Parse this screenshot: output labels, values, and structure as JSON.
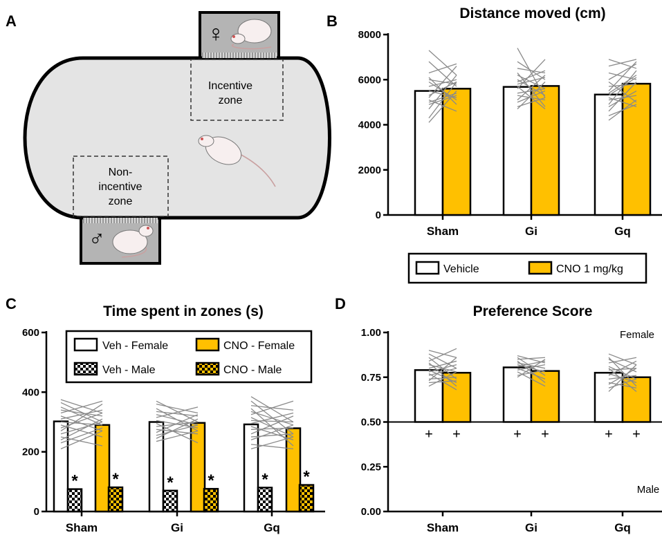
{
  "panels": {
    "A": {
      "label": "A",
      "female_symbol": "♀",
      "male_symbol": "♂",
      "incentive_zone": [
        "Incentive",
        "zone"
      ],
      "noninc_zone": [
        "Non-",
        "incentive",
        "zone"
      ]
    },
    "B": {
      "label": "B"
    },
    "C": {
      "label": "C"
    },
    "D": {
      "label": "D"
    }
  },
  "colors": {
    "vehicle": "#ffffff",
    "cno": "#ffc000",
    "edge": "#000000",
    "individual": "#8a8a8a",
    "arena": "#e4e4e4",
    "box": "#b4b4b4"
  },
  "chart_data": [
    {
      "id": "B",
      "type": "bar",
      "title": "Distance moved (cm)",
      "categories": [
        "Sham",
        "Gi",
        "Gq"
      ],
      "ylim": [
        0,
        8000
      ],
      "yticks": [
        0,
        2000,
        4000,
        6000,
        8000
      ],
      "series": [
        {
          "name": "Vehicle",
          "values": [
            5500,
            5680,
            5340
          ]
        },
        {
          "name": "CNO 1 mg/kg",
          "values": [
            5600,
            5720,
            5820
          ]
        }
      ],
      "legend": {
        "placement": "bottom",
        "entries": [
          "Vehicle",
          "CNO 1 mg/kg"
        ]
      },
      "individual_lines": [
        [
          [
            4300,
            5900
          ],
          [
            4700,
            6200
          ],
          [
            5000,
            5400
          ],
          [
            5200,
            6600
          ],
          [
            5500,
            5200
          ],
          [
            5700,
            6000
          ],
          [
            6000,
            5800
          ],
          [
            6300,
            6700
          ],
          [
            6800,
            5700
          ],
          [
            7300,
            6200
          ],
          [
            5100,
            4600
          ],
          [
            4900,
            5300
          ],
          [
            5900,
            5100
          ],
          [
            5300,
            5900
          ],
          [
            6100,
            4900
          ],
          [
            4100,
            5500
          ]
        ],
        [
          [
            4800,
            5200
          ],
          [
            5100,
            6200
          ],
          [
            5400,
            5600
          ],
          [
            5700,
            4700
          ],
          [
            5900,
            6400
          ],
          [
            6200,
            5600
          ],
          [
            6500,
            6300
          ],
          [
            7400,
            5200
          ],
          [
            6800,
            6000
          ],
          [
            5300,
            5100
          ],
          [
            6000,
            5300
          ],
          [
            5600,
            6900
          ],
          [
            4700,
            5900
          ],
          [
            6300,
            4800
          ],
          [
            5000,
            5500
          ],
          [
            5800,
            6100
          ]
        ],
        [
          [
            4200,
            5100
          ],
          [
            4600,
            5900
          ],
          [
            4900,
            6400
          ],
          [
            5100,
            5300
          ],
          [
            5400,
            6200
          ],
          [
            5700,
            5800
          ],
          [
            6000,
            6700
          ],
          [
            6300,
            6000
          ],
          [
            6600,
            6900
          ],
          [
            5200,
            4800
          ],
          [
            4800,
            5500
          ],
          [
            5500,
            6800
          ],
          [
            5900,
            5000
          ],
          [
            6900,
            6500
          ],
          [
            4400,
            4900
          ],
          [
            5300,
            6100
          ]
        ]
      ]
    },
    {
      "id": "C",
      "type": "bar",
      "title": "Time spent in zones (s)",
      "categories": [
        "Sham",
        "Gi",
        "Gq"
      ],
      "ylim": [
        0,
        600
      ],
      "yticks": [
        0,
        200,
        400,
        600
      ],
      "series": [
        {
          "name": "Veh - Female",
          "values": [
            302,
            300,
            292
          ]
        },
        {
          "name": "Veh - Male",
          "values": [
            75,
            70,
            80
          ]
        },
        {
          "name": "CNO - Female",
          "values": [
            290,
            297,
            279
          ]
        },
        {
          "name": "CNO - Male",
          "values": [
            81,
            76,
            89
          ]
        }
      ],
      "legend": {
        "placement": "top",
        "entries": [
          "Veh - Female",
          "CNO - Female",
          "Veh - Male",
          "CNO - Male"
        ]
      },
      "annotations": [
        "*",
        "*",
        "*",
        "*",
        "*",
        "*"
      ],
      "individual_lines": [
        [
          [
            375,
            330
          ],
          [
            365,
            300
          ],
          [
            350,
            290
          ],
          [
            340,
            320
          ],
          [
            330,
            370
          ],
          [
            320,
            270
          ],
          [
            310,
            340
          ],
          [
            300,
            290
          ],
          [
            290,
            250
          ],
          [
            280,
            330
          ],
          [
            270,
            360
          ],
          [
            260,
            300
          ],
          [
            250,
            220
          ],
          [
            240,
            310
          ],
          [
            230,
            280
          ],
          [
            210,
            270
          ]
        ],
        [
          [
            370,
            300
          ],
          [
            360,
            330
          ],
          [
            345,
            270
          ],
          [
            335,
            320
          ],
          [
            325,
            290
          ],
          [
            315,
            350
          ],
          [
            305,
            280
          ],
          [
            295,
            230
          ],
          [
            285,
            300
          ],
          [
            275,
            260
          ],
          [
            265,
            325
          ],
          [
            255,
            290
          ],
          [
            245,
            310
          ],
          [
            235,
            270
          ]
        ],
        [
          [
            385,
            300
          ],
          [
            370,
            260
          ],
          [
            355,
            340
          ],
          [
            345,
            220
          ],
          [
            335,
            290
          ],
          [
            325,
            370
          ],
          [
            315,
            250
          ],
          [
            305,
            300
          ],
          [
            295,
            330
          ],
          [
            285,
            240
          ],
          [
            275,
            280
          ],
          [
            260,
            320
          ],
          [
            250,
            260
          ],
          [
            240,
            290
          ],
          [
            225,
            210
          ],
          [
            210,
            250
          ]
        ]
      ]
    },
    {
      "id": "D",
      "type": "bar",
      "title": "Preference Score",
      "categories": [
        "Sham",
        "Gi",
        "Gq"
      ],
      "ylim": [
        0,
        1
      ],
      "yticks": [
        "0.00",
        "0.25",
        "0.50",
        "0.75",
        "1.00"
      ],
      "series": [
        {
          "name": "Vehicle",
          "values": [
            0.79,
            0.805,
            0.775
          ]
        },
        {
          "name": "CNO 1 mg/kg",
          "values": [
            0.775,
            0.785,
            0.75
          ]
        }
      ],
      "region_labels": {
        "top": "Female",
        "bottom": "Male"
      },
      "annotations": [
        "+",
        "+",
        "+",
        "+",
        "+",
        "+"
      ],
      "individual_lines": [
        [
          [
            0.9,
            0.86
          ],
          [
            0.88,
            0.8
          ],
          [
            0.86,
            0.74
          ],
          [
            0.84,
            0.91
          ],
          [
            0.83,
            0.7
          ],
          [
            0.82,
            0.78
          ],
          [
            0.8,
            0.84
          ],
          [
            0.79,
            0.72
          ],
          [
            0.78,
            0.82
          ],
          [
            0.77,
            0.68
          ],
          [
            0.76,
            0.8
          ],
          [
            0.74,
            0.75
          ],
          [
            0.73,
            0.86
          ],
          [
            0.72,
            0.73
          ],
          [
            0.7,
            0.78
          ]
        ],
        [
          [
            0.87,
            0.83
          ],
          [
            0.86,
            0.76
          ],
          [
            0.85,
            0.86
          ],
          [
            0.84,
            0.72
          ],
          [
            0.83,
            0.8
          ],
          [
            0.82,
            0.78
          ],
          [
            0.81,
            0.84
          ],
          [
            0.8,
            0.74
          ],
          [
            0.79,
            0.82
          ],
          [
            0.78,
            0.7
          ],
          [
            0.76,
            0.79
          ],
          [
            0.75,
            0.85
          ]
        ],
        [
          [
            0.88,
            0.82
          ],
          [
            0.86,
            0.7
          ],
          [
            0.85,
            0.78
          ],
          [
            0.83,
            0.86
          ],
          [
            0.81,
            0.74
          ],
          [
            0.8,
            0.67
          ],
          [
            0.79,
            0.8
          ],
          [
            0.77,
            0.72
          ],
          [
            0.76,
            0.84
          ],
          [
            0.74,
            0.76
          ],
          [
            0.72,
            0.69
          ],
          [
            0.71,
            0.8
          ],
          [
            0.69,
            0.74
          ],
          [
            0.67,
            0.82
          ]
        ]
      ]
    }
  ]
}
